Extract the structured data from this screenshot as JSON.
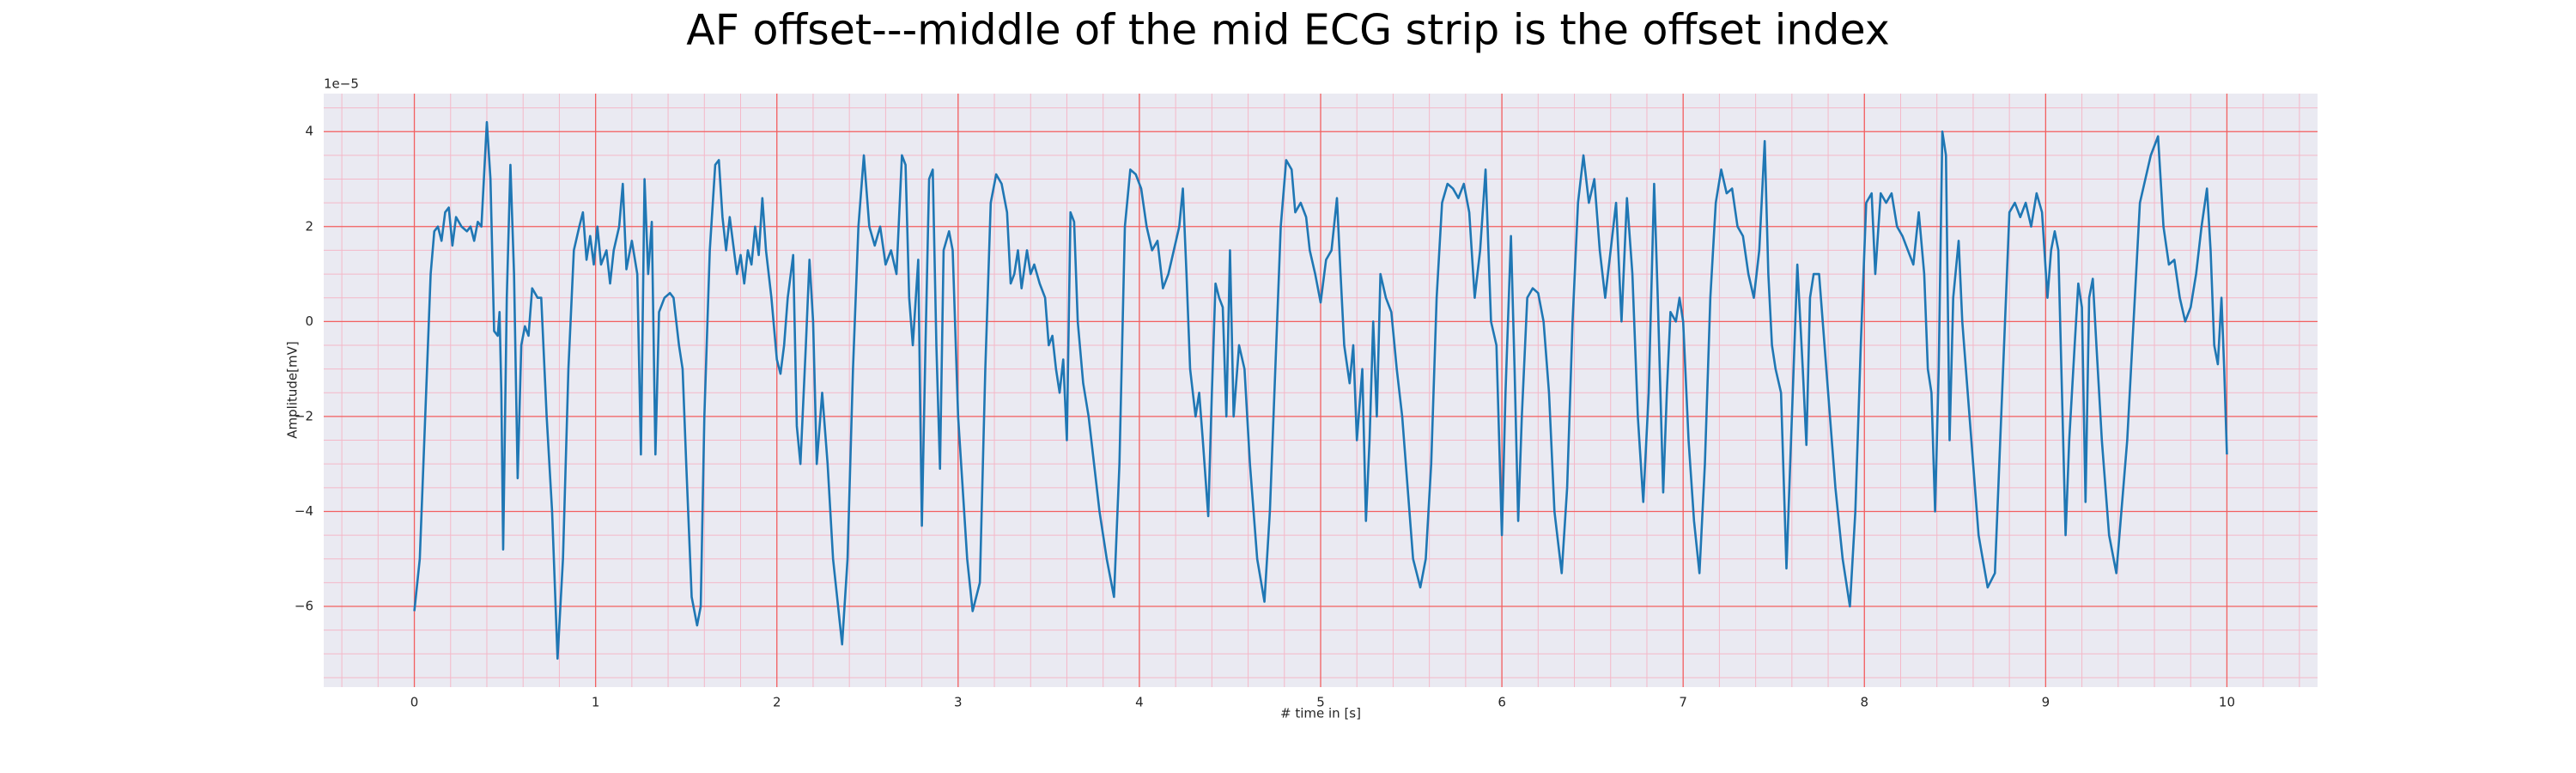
{
  "chart_data": {
    "type": "line",
    "title": "AF offset---middle of the mid ECG strip is the offset index",
    "x_label": "# time in [s]",
    "y_label": "Amplitude[mV]",
    "y_offset_label": "1e−5",
    "x": [
      0,
      0.03,
      0.06,
      0.09,
      0.11,
      0.13,
      0.15,
      0.17,
      0.19,
      0.21,
      0.23,
      0.26,
      0.29,
      0.31,
      0.33,
      0.35,
      0.37,
      0.4,
      0.42,
      0.44,
      0.46,
      0.47,
      0.48,
      0.49,
      0.51,
      0.53,
      0.55,
      0.57,
      0.59,
      0.61,
      0.63,
      0.65,
      0.68,
      0.7,
      0.73,
      0.76,
      0.79,
      0.82,
      0.85,
      0.88,
      0.91,
      0.93,
      0.95,
      0.97,
      0.99,
      1.01,
      1.03,
      1.06,
      1.08,
      1.1,
      1.13,
      1.15,
      1.17,
      1.2,
      1.23,
      1.25,
      1.27,
      1.29,
      1.31,
      1.33,
      1.35,
      1.38,
      1.41,
      1.43,
      1.46,
      1.48,
      1.5,
      1.53,
      1.56,
      1.58,
      1.6,
      1.63,
      1.66,
      1.68,
      1.7,
      1.72,
      1.74,
      1.76,
      1.78,
      1.8,
      1.82,
      1.84,
      1.86,
      1.88,
      1.9,
      1.92,
      1.94,
      1.97,
      2.0,
      2.02,
      2.04,
      2.06,
      2.09,
      2.11,
      2.13,
      2.16,
      2.18,
      2.2,
      2.22,
      2.25,
      2.28,
      2.31,
      2.36,
      2.39,
      2.42,
      2.45,
      2.48,
      2.51,
      2.54,
      2.57,
      2.6,
      2.63,
      2.66,
      2.69,
      2.71,
      2.73,
      2.75,
      2.78,
      2.8,
      2.82,
      2.84,
      2.86,
      2.88,
      2.9,
      2.92,
      2.95,
      2.97,
      3.0,
      3.05,
      3.08,
      3.12,
      3.15,
      3.18,
      3.21,
      3.24,
      3.27,
      3.29,
      3.31,
      3.33,
      3.35,
      3.38,
      3.4,
      3.42,
      3.45,
      3.48,
      3.5,
      3.52,
      3.54,
      3.56,
      3.58,
      3.6,
      3.62,
      3.64,
      3.66,
      3.69,
      3.72,
      3.75,
      3.78,
      3.82,
      3.86,
      3.89,
      3.92,
      3.95,
      3.98,
      4.01,
      4.04,
      4.07,
      4.1,
      4.13,
      4.16,
      4.19,
      4.22,
      4.24,
      4.26,
      4.28,
      4.31,
      4.33,
      4.35,
      4.38,
      4.4,
      4.42,
      4.44,
      4.46,
      4.48,
      4.5,
      4.52,
      4.55,
      4.58,
      4.61,
      4.65,
      4.69,
      4.72,
      4.75,
      4.78,
      4.81,
      4.84,
      4.86,
      4.89,
      4.92,
      4.94,
      4.97,
      5.0,
      5.03,
      5.06,
      5.09,
      5.11,
      5.13,
      5.16,
      5.18,
      5.2,
      5.23,
      5.25,
      5.27,
      5.29,
      5.31,
      5.33,
      5.36,
      5.39,
      5.42,
      5.45,
      5.48,
      5.51,
      5.55,
      5.58,
      5.61,
      5.64,
      5.67,
      5.7,
      5.73,
      5.76,
      5.79,
      5.82,
      5.85,
      5.88,
      5.91,
      5.94,
      5.97,
      6.0,
      6.02,
      6.05,
      6.07,
      6.09,
      6.11,
      6.14,
      6.17,
      6.2,
      6.23,
      6.26,
      6.29,
      6.33,
      6.36,
      6.39,
      6.42,
      6.45,
      6.48,
      6.51,
      6.54,
      6.57,
      6.6,
      6.63,
      6.66,
      6.69,
      6.72,
      6.75,
      6.78,
      6.81,
      6.84,
      6.86,
      6.89,
      6.91,
      6.93,
      6.96,
      6.98,
      7.0,
      7.03,
      7.06,
      7.09,
      7.12,
      7.15,
      7.18,
      7.21,
      7.24,
      7.27,
      7.3,
      7.33,
      7.36,
      7.39,
      7.42,
      7.45,
      7.47,
      7.49,
      7.51,
      7.54,
      7.57,
      7.6,
      7.63,
      7.66,
      7.68,
      7.7,
      7.72,
      7.75,
      7.78,
      7.81,
      7.84,
      7.88,
      7.92,
      7.95,
      7.98,
      8.01,
      8.04,
      8.06,
      8.09,
      8.12,
      8.15,
      8.18,
      8.21,
      8.24,
      8.27,
      8.3,
      8.33,
      8.35,
      8.37,
      8.39,
      8.41,
      8.43,
      8.45,
      8.47,
      8.49,
      8.52,
      8.54,
      8.56,
      8.59,
      8.63,
      8.68,
      8.72,
      8.76,
      8.8,
      8.83,
      8.86,
      8.89,
      8.92,
      8.95,
      8.98,
      9.01,
      9.03,
      9.05,
      9.07,
      9.09,
      9.11,
      9.13,
      9.16,
      9.18,
      9.2,
      9.22,
      9.24,
      9.26,
      9.28,
      9.31,
      9.35,
      9.39,
      9.45,
      9.52,
      9.58,
      9.62,
      9.65,
      9.68,
      9.71,
      9.74,
      9.77,
      9.8,
      9.83,
      9.86,
      9.89,
      9.91,
      9.93,
      9.95,
      9.97,
      9.985,
      10.0
    ],
    "series": [
      {
        "color": "#1f77b4",
        "values": [
          -6.1,
          -5.0,
          -2.0,
          1.0,
          1.9,
          2.0,
          1.7,
          2.3,
          2.4,
          1.6,
          2.2,
          2.0,
          1.9,
          2.0,
          1.7,
          2.1,
          2.0,
          4.2,
          3.0,
          -0.2,
          -0.3,
          0.2,
          -1.5,
          -4.8,
          0.5,
          3.3,
          1.0,
          -3.3,
          -0.5,
          -0.1,
          -0.3,
          0.7,
          0.5,
          0.5,
          -2.0,
          -4.0,
          -7.1,
          -5.0,
          -1.0,
          1.5,
          2.0,
          2.3,
          1.3,
          1.8,
          1.2,
          2.0,
          1.2,
          1.5,
          0.8,
          1.5,
          2.0,
          2.9,
          1.1,
          1.7,
          1.0,
          -2.8,
          3.0,
          1.0,
          2.1,
          -2.8,
          0.2,
          0.5,
          0.6,
          0.5,
          -0.5,
          -1.0,
          -3.0,
          -5.8,
          -6.4,
          -6.0,
          -2.0,
          1.5,
          3.3,
          3.4,
          2.2,
          1.5,
          2.2,
          1.6,
          1.0,
          1.4,
          0.8,
          1.5,
          1.2,
          2.0,
          1.4,
          2.6,
          1.5,
          0.5,
          -0.8,
          -1.1,
          -0.5,
          0.5,
          1.4,
          -2.2,
          -3.0,
          -0.5,
          1.3,
          0.0,
          -3.0,
          -1.5,
          -3.0,
          -5.0,
          -6.8,
          -5.0,
          -1.0,
          2.0,
          3.5,
          2.0,
          1.6,
          2.0,
          1.2,
          1.5,
          1.0,
          3.5,
          3.3,
          0.5,
          -0.5,
          1.3,
          -4.3,
          -0.5,
          3.0,
          3.2,
          -0.5,
          -3.1,
          1.5,
          1.9,
          1.5,
          -2.0,
          -5.0,
          -6.1,
          -5.5,
          -1.0,
          2.5,
          3.1,
          2.9,
          2.3,
          0.8,
          1.0,
          1.5,
          0.7,
          1.5,
          1.0,
          1.2,
          0.8,
          0.5,
          -0.5,
          -0.3,
          -1.0,
          -1.5,
          -0.8,
          -2.5,
          2.3,
          2.1,
          0.0,
          -1.3,
          -2.0,
          -3.0,
          -4.0,
          -5.0,
          -5.8,
          -3.0,
          2.0,
          3.2,
          3.1,
          2.8,
          2.0,
          1.5,
          1.7,
          0.7,
          1.0,
          1.5,
          2.0,
          2.8,
          1.0,
          -1.0,
          -2.0,
          -1.5,
          -2.5,
          -4.1,
          -1.5,
          0.8,
          0.5,
          0.3,
          -2.0,
          1.5,
          -2.0,
          -0.5,
          -1.0,
          -3.0,
          -5.0,
          -5.9,
          -4.0,
          -1.0,
          2.0,
          3.4,
          3.2,
          2.3,
          2.5,
          2.2,
          1.5,
          1.0,
          0.4,
          1.3,
          1.5,
          2.6,
          1.0,
          -0.5,
          -1.3,
          -0.5,
          -2.5,
          -1.0,
          -4.2,
          -2.5,
          0.0,
          -2.0,
          1.0,
          0.5,
          0.2,
          -1.0,
          -2.0,
          -3.5,
          -5.0,
          -5.6,
          -5.0,
          -3.0,
          0.5,
          2.5,
          2.9,
          2.8,
          2.6,
          2.9,
          2.3,
          0.5,
          1.5,
          3.2,
          0.0,
          -0.5,
          -4.5,
          -1.5,
          1.8,
          -1.0,
          -4.2,
          -2.0,
          0.5,
          0.7,
          0.6,
          0.0,
          -1.5,
          -4.0,
          -5.3,
          -3.5,
          0.0,
          2.5,
          3.5,
          2.5,
          3.0,
          1.5,
          0.5,
          1.5,
          2.5,
          0.0,
          2.6,
          1.0,
          -2.0,
          -3.8,
          -1.5,
          2.9,
          0.5,
          -3.6,
          -1.5,
          0.2,
          0.0,
          0.5,
          0.0,
          -2.5,
          -4.2,
          -5.3,
          -3.0,
          0.5,
          2.5,
          3.2,
          2.7,
          2.8,
          2.0,
          1.8,
          1.0,
          0.5,
          1.5,
          3.8,
          1.0,
          -0.5,
          -1.0,
          -1.5,
          -5.2,
          -2.0,
          1.2,
          -1.0,
          -2.6,
          0.5,
          1.0,
          1.0,
          -0.5,
          -2.0,
          -3.5,
          -5.0,
          -6.0,
          -4.0,
          -0.5,
          2.5,
          2.7,
          1.0,
          2.7,
          2.5,
          2.7,
          2.0,
          1.8,
          1.5,
          1.2,
          2.3,
          1.0,
          -1.0,
          -1.5,
          -4.0,
          -1.0,
          4.0,
          3.5,
          -2.5,
          0.5,
          1.7,
          0.0,
          -1.0,
          -2.5,
          -4.5,
          -5.6,
          -5.3,
          -1.5,
          2.3,
          2.5,
          2.2,
          2.5,
          2.0,
          2.7,
          2.3,
          0.5,
          1.5,
          1.9,
          1.5,
          -1.5,
          -4.5,
          -2.5,
          -0.5,
          0.8,
          0.3,
          -3.8,
          0.5,
          0.9,
          -0.5,
          -2.5,
          -4.5,
          -5.3,
          -2.5,
          2.5,
          3.5,
          3.9,
          2.0,
          1.2,
          1.3,
          0.5,
          0.0,
          0.3,
          1.0,
          2.0,
          2.8,
          1.5,
          -0.5,
          -0.9,
          0.5,
          -1.0,
          -2.8
        ]
      }
    ],
    "xlim": [
      -0.5,
      10.5
    ],
    "ylim": [
      -7.7,
      4.8
    ],
    "xticks": [
      0,
      1,
      2,
      3,
      4,
      5,
      6,
      7,
      8,
      9,
      10
    ],
    "yticks": [
      {
        "value": -6,
        "label": "−6"
      },
      {
        "value": -4,
        "label": "−4"
      },
      {
        "value": -2,
        "label": "−2"
      },
      0,
      2,
      4
    ],
    "grid": true,
    "minor_grid": true
  }
}
